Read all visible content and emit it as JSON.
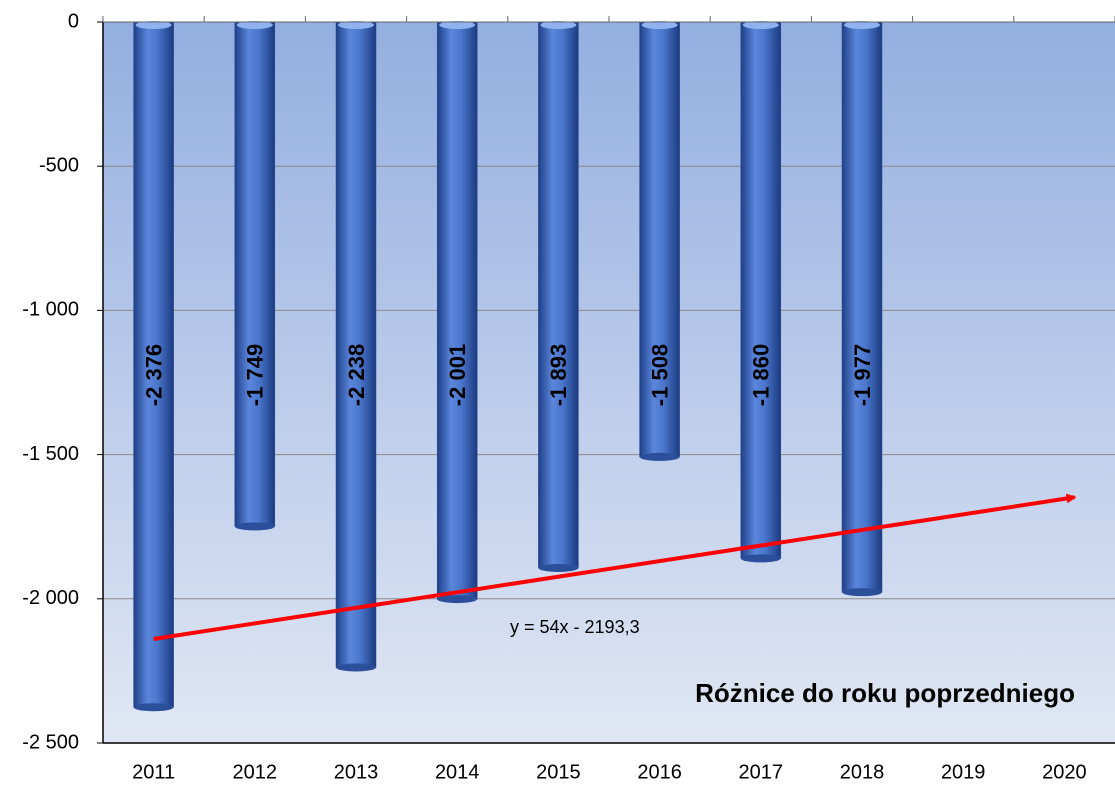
{
  "chart_data": {
    "type": "bar",
    "title": "Różnice do roku poprzedniego",
    "categories": [
      "2011",
      "2012",
      "2013",
      "2014",
      "2015",
      "2016",
      "2017",
      "2018",
      "2019",
      "2020"
    ],
    "values": [
      -2376,
      -1749,
      -2238,
      -2001,
      -1893,
      -1508,
      -1860,
      -1977,
      null,
      null
    ],
    "value_labels": [
      "-2 376",
      "-1 749",
      "-2 238",
      "-2 001",
      "-1 893",
      "-1 508",
      "-1 860",
      "-1 977",
      null,
      null
    ],
    "color": "#3d68c0",
    "ylim": [
      -2500,
      0
    ],
    "yticks": [
      0,
      -500,
      {
        "value": -1000,
        "label": "-1 000"
      },
      {
        "value": -1500,
        "label": "-1 500"
      },
      {
        "value": -2000,
        "label": "-2 000"
      },
      {
        "value": -2500,
        "label": "-2 500"
      }
    ],
    "grid": true,
    "trendline": {
      "label": "y = 54x - 2193,3",
      "slope": 54,
      "intercept": -2193.3,
      "color": "#ff0000"
    }
  }
}
